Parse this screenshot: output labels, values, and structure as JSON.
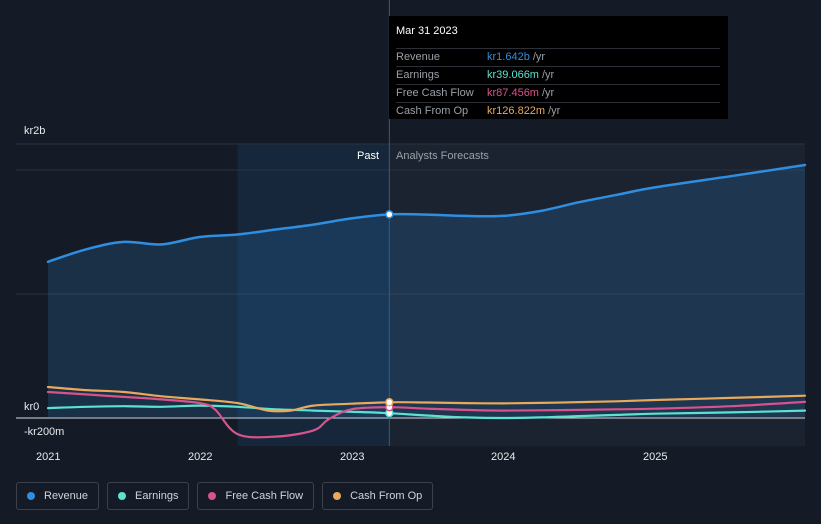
{
  "tooltip": {
    "date": "Mar 31 2023",
    "rows": [
      {
        "label": "Revenue",
        "value": "kr1.642b",
        "unit": "/yr",
        "color": "#2f8ee0"
      },
      {
        "label": "Earnings",
        "value": "kr39.066m",
        "unit": "/yr",
        "color": "#5ce3d0"
      },
      {
        "label": "Free Cash Flow",
        "value": "kr87.456m",
        "unit": "/yr",
        "color": "#d9528c"
      },
      {
        "label": "Cash From Op",
        "value": "kr126.822m",
        "unit": "/yr",
        "color": "#e8a95c"
      }
    ]
  },
  "chart_data": {
    "type": "line",
    "y_axis_labels": {
      "top": "kr2b",
      "zero": "kr0",
      "bottom": "-kr200m"
    },
    "x_tick_labels": [
      "2021",
      "2022",
      "2023",
      "2024",
      "2025"
    ],
    "past_label": "Past",
    "forecast_label": "Analysts Forecasts",
    "ylim": [
      -200,
      2200
    ],
    "x_range": [
      2021.0,
      2025.99
    ],
    "past_end": 2023.25,
    "highlight_start": 2022.25,
    "series": [
      {
        "name": "Revenue",
        "color": "#2f8ee0",
        "filled": true,
        "points": [
          [
            2021.0,
            1260
          ],
          [
            2021.25,
            1360
          ],
          [
            2021.5,
            1420
          ],
          [
            2021.75,
            1400
          ],
          [
            2022.0,
            1460
          ],
          [
            2022.25,
            1480
          ],
          [
            2022.5,
            1520
          ],
          [
            2022.75,
            1560
          ],
          [
            2023.0,
            1610
          ],
          [
            2023.25,
            1642
          ],
          [
            2023.5,
            1640
          ],
          [
            2023.75,
            1630
          ],
          [
            2024.0,
            1630
          ],
          [
            2024.25,
            1670
          ],
          [
            2024.5,
            1740
          ],
          [
            2024.75,
            1800
          ],
          [
            2025.0,
            1860
          ],
          [
            2025.5,
            1950
          ],
          [
            2025.99,
            2040
          ]
        ]
      },
      {
        "name": "Earnings",
        "color": "#5ce3d0",
        "filled": false,
        "points": [
          [
            2021.0,
            80
          ],
          [
            2021.25,
            90
          ],
          [
            2021.5,
            95
          ],
          [
            2021.75,
            90
          ],
          [
            2022.0,
            100
          ],
          [
            2022.25,
            90
          ],
          [
            2022.5,
            70
          ],
          [
            2022.75,
            60
          ],
          [
            2023.0,
            50
          ],
          [
            2023.25,
            39
          ],
          [
            2023.5,
            20
          ],
          [
            2023.75,
            5
          ],
          [
            2024.0,
            0
          ],
          [
            2024.25,
            5
          ],
          [
            2024.5,
            15
          ],
          [
            2024.75,
            25
          ],
          [
            2025.0,
            35
          ],
          [
            2025.5,
            45
          ],
          [
            2025.99,
            60
          ]
        ]
      },
      {
        "name": "Free Cash Flow",
        "color": "#d9528c",
        "filled": false,
        "points": [
          [
            2021.0,
            210
          ],
          [
            2021.25,
            190
          ],
          [
            2021.5,
            170
          ],
          [
            2021.75,
            150
          ],
          [
            2022.0,
            120
          ],
          [
            2022.1,
            70
          ],
          [
            2022.25,
            -130
          ],
          [
            2022.5,
            -150
          ],
          [
            2022.75,
            -100
          ],
          [
            2022.85,
            -10
          ],
          [
            2023.0,
            70
          ],
          [
            2023.25,
            87
          ],
          [
            2023.5,
            75
          ],
          [
            2023.75,
            65
          ],
          [
            2024.0,
            60
          ],
          [
            2024.25,
            62
          ],
          [
            2024.5,
            65
          ],
          [
            2024.75,
            70
          ],
          [
            2025.0,
            75
          ],
          [
            2025.5,
            95
          ],
          [
            2025.99,
            130
          ]
        ]
      },
      {
        "name": "Cash From Op",
        "color": "#e8a95c",
        "filled": false,
        "points": [
          [
            2021.0,
            250
          ],
          [
            2021.25,
            225
          ],
          [
            2021.5,
            210
          ],
          [
            2021.75,
            175
          ],
          [
            2022.0,
            150
          ],
          [
            2022.25,
            120
          ],
          [
            2022.45,
            60
          ],
          [
            2022.6,
            60
          ],
          [
            2022.75,
            100
          ],
          [
            2023.0,
            115
          ],
          [
            2023.25,
            127
          ],
          [
            2023.5,
            125
          ],
          [
            2023.75,
            120
          ],
          [
            2024.0,
            118
          ],
          [
            2024.25,
            122
          ],
          [
            2024.5,
            128
          ],
          [
            2024.75,
            135
          ],
          [
            2025.0,
            145
          ],
          [
            2025.5,
            162
          ],
          [
            2025.99,
            180
          ]
        ]
      }
    ]
  },
  "legend": [
    {
      "label": "Revenue",
      "color": "#2f8ee0"
    },
    {
      "label": "Earnings",
      "color": "#5ce3d0"
    },
    {
      "label": "Free Cash Flow",
      "color": "#d9528c"
    },
    {
      "label": "Cash From Op",
      "color": "#e8a95c"
    }
  ]
}
